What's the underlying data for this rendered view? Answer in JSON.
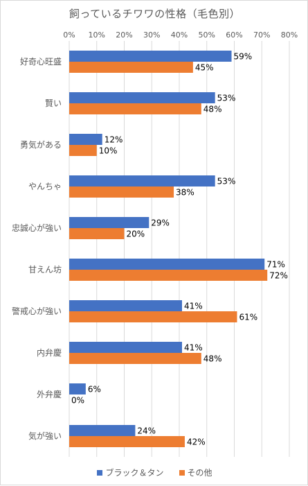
{
  "chart_data": {
    "type": "bar",
    "orientation": "horizontal",
    "title": "飼っているチワワの性格（毛色別）",
    "categories": [
      "好奇心旺盛",
      "賢い",
      "勇気がある",
      "やんちゃ",
      "忠誠心が強い",
      "甘えん坊",
      "警戒心が強い",
      "内弁慶",
      "外弁慶",
      "気が強い"
    ],
    "series": [
      {
        "name": "ブラック＆タン",
        "color": "#4472c4",
        "values": [
          59,
          53,
          12,
          53,
          29,
          71,
          41,
          41,
          6,
          24
        ]
      },
      {
        "name": "その他",
        "color": "#ed7d31",
        "values": [
          45,
          48,
          10,
          38,
          20,
          72,
          61,
          48,
          0,
          42
        ]
      }
    ],
    "xticks": [
      "0%",
      "10%",
      "20%",
      "30%",
      "40%",
      "50%",
      "60%",
      "70%",
      "80%"
    ],
    "xlim": [
      0,
      80
    ],
    "value_suffix": "%",
    "grid": true,
    "gridline_color": "#d9d9d9",
    "axis_label_color": "#595959",
    "legend_position": "bottom"
  }
}
